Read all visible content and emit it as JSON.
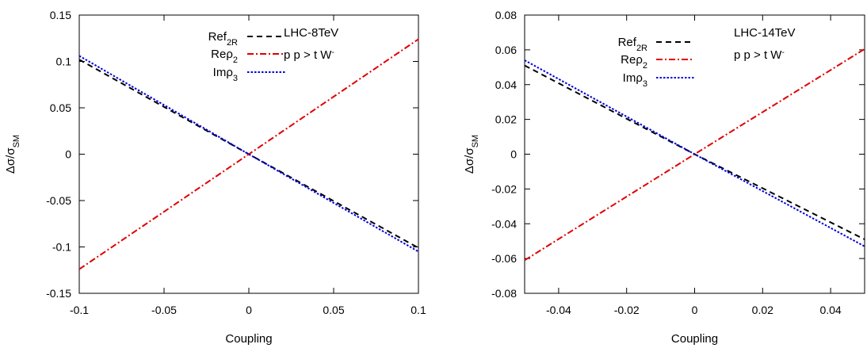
{
  "chart_data": [
    {
      "type": "line",
      "xlabel": "Coupling",
      "ylabel": "Δσ/σ",
      "ylabel_sub": "SM",
      "xlim": [
        -0.1,
        0.1
      ],
      "ylim": [
        -0.15,
        0.15
      ],
      "xticks": [
        "-0.1",
        "-0.05",
        "0",
        "0.05",
        "0.1"
      ],
      "yticks": [
        "-0.15",
        "-0.1",
        "-0.05",
        "0",
        "0.05",
        "0.1",
        "0.15"
      ],
      "annotation": [
        "LHC-8TeV",
        "p p > t W",
        "-"
      ],
      "legend_position": "top-left",
      "series": [
        {
          "name": "Ref",
          "name_sub": "2R",
          "color": "#000000",
          "style": "dashed",
          "x": [
            -0.1,
            0,
            0.1
          ],
          "values": [
            0.102,
            0,
            -0.101
          ]
        },
        {
          "name": "Reρ",
          "name_sub": "2",
          "color": "#e00000",
          "style": "dashdot",
          "x": [
            -0.1,
            0,
            0.1
          ],
          "values": [
            -0.124,
            0,
            0.124
          ]
        },
        {
          "name": "Imρ",
          "name_sub": "3",
          "color": "#0000e0",
          "style": "dotted",
          "x": [
            -0.1,
            0,
            0.1
          ],
          "values": [
            0.106,
            0,
            -0.105
          ]
        }
      ]
    },
    {
      "type": "line",
      "xlabel": "Coupling",
      "ylabel": "Δσ/σ",
      "ylabel_sub": "SM",
      "xlim": [
        -0.05,
        0.05
      ],
      "ylim": [
        -0.08,
        0.08
      ],
      "xticks": [
        "-0.04",
        "-0.02",
        "0",
        "0.02",
        "0.04"
      ],
      "yticks": [
        "-0.08",
        "-0.06",
        "-0.04",
        "-0.02",
        "0",
        "0.02",
        "0.04",
        "0.06",
        "0.08"
      ],
      "annotation": [
        "LHC-14TeV",
        "p p > t W",
        "-"
      ],
      "legend_position": "top-left",
      "series": [
        {
          "name": "Ref",
          "name_sub": "2R",
          "color": "#000000",
          "style": "dashed",
          "x": [
            -0.05,
            0,
            0.05
          ],
          "values": [
            0.051,
            0,
            -0.049
          ]
        },
        {
          "name": "Reρ",
          "name_sub": "2",
          "color": "#e00000",
          "style": "dashdot",
          "x": [
            -0.05,
            0,
            0.05
          ],
          "values": [
            -0.061,
            0,
            0.0605
          ]
        },
        {
          "name": "Imρ",
          "name_sub": "3",
          "color": "#0000e0",
          "style": "dotted",
          "x": [
            -0.05,
            0,
            0.05
          ],
          "values": [
            0.054,
            0,
            -0.053
          ]
        }
      ]
    }
  ]
}
